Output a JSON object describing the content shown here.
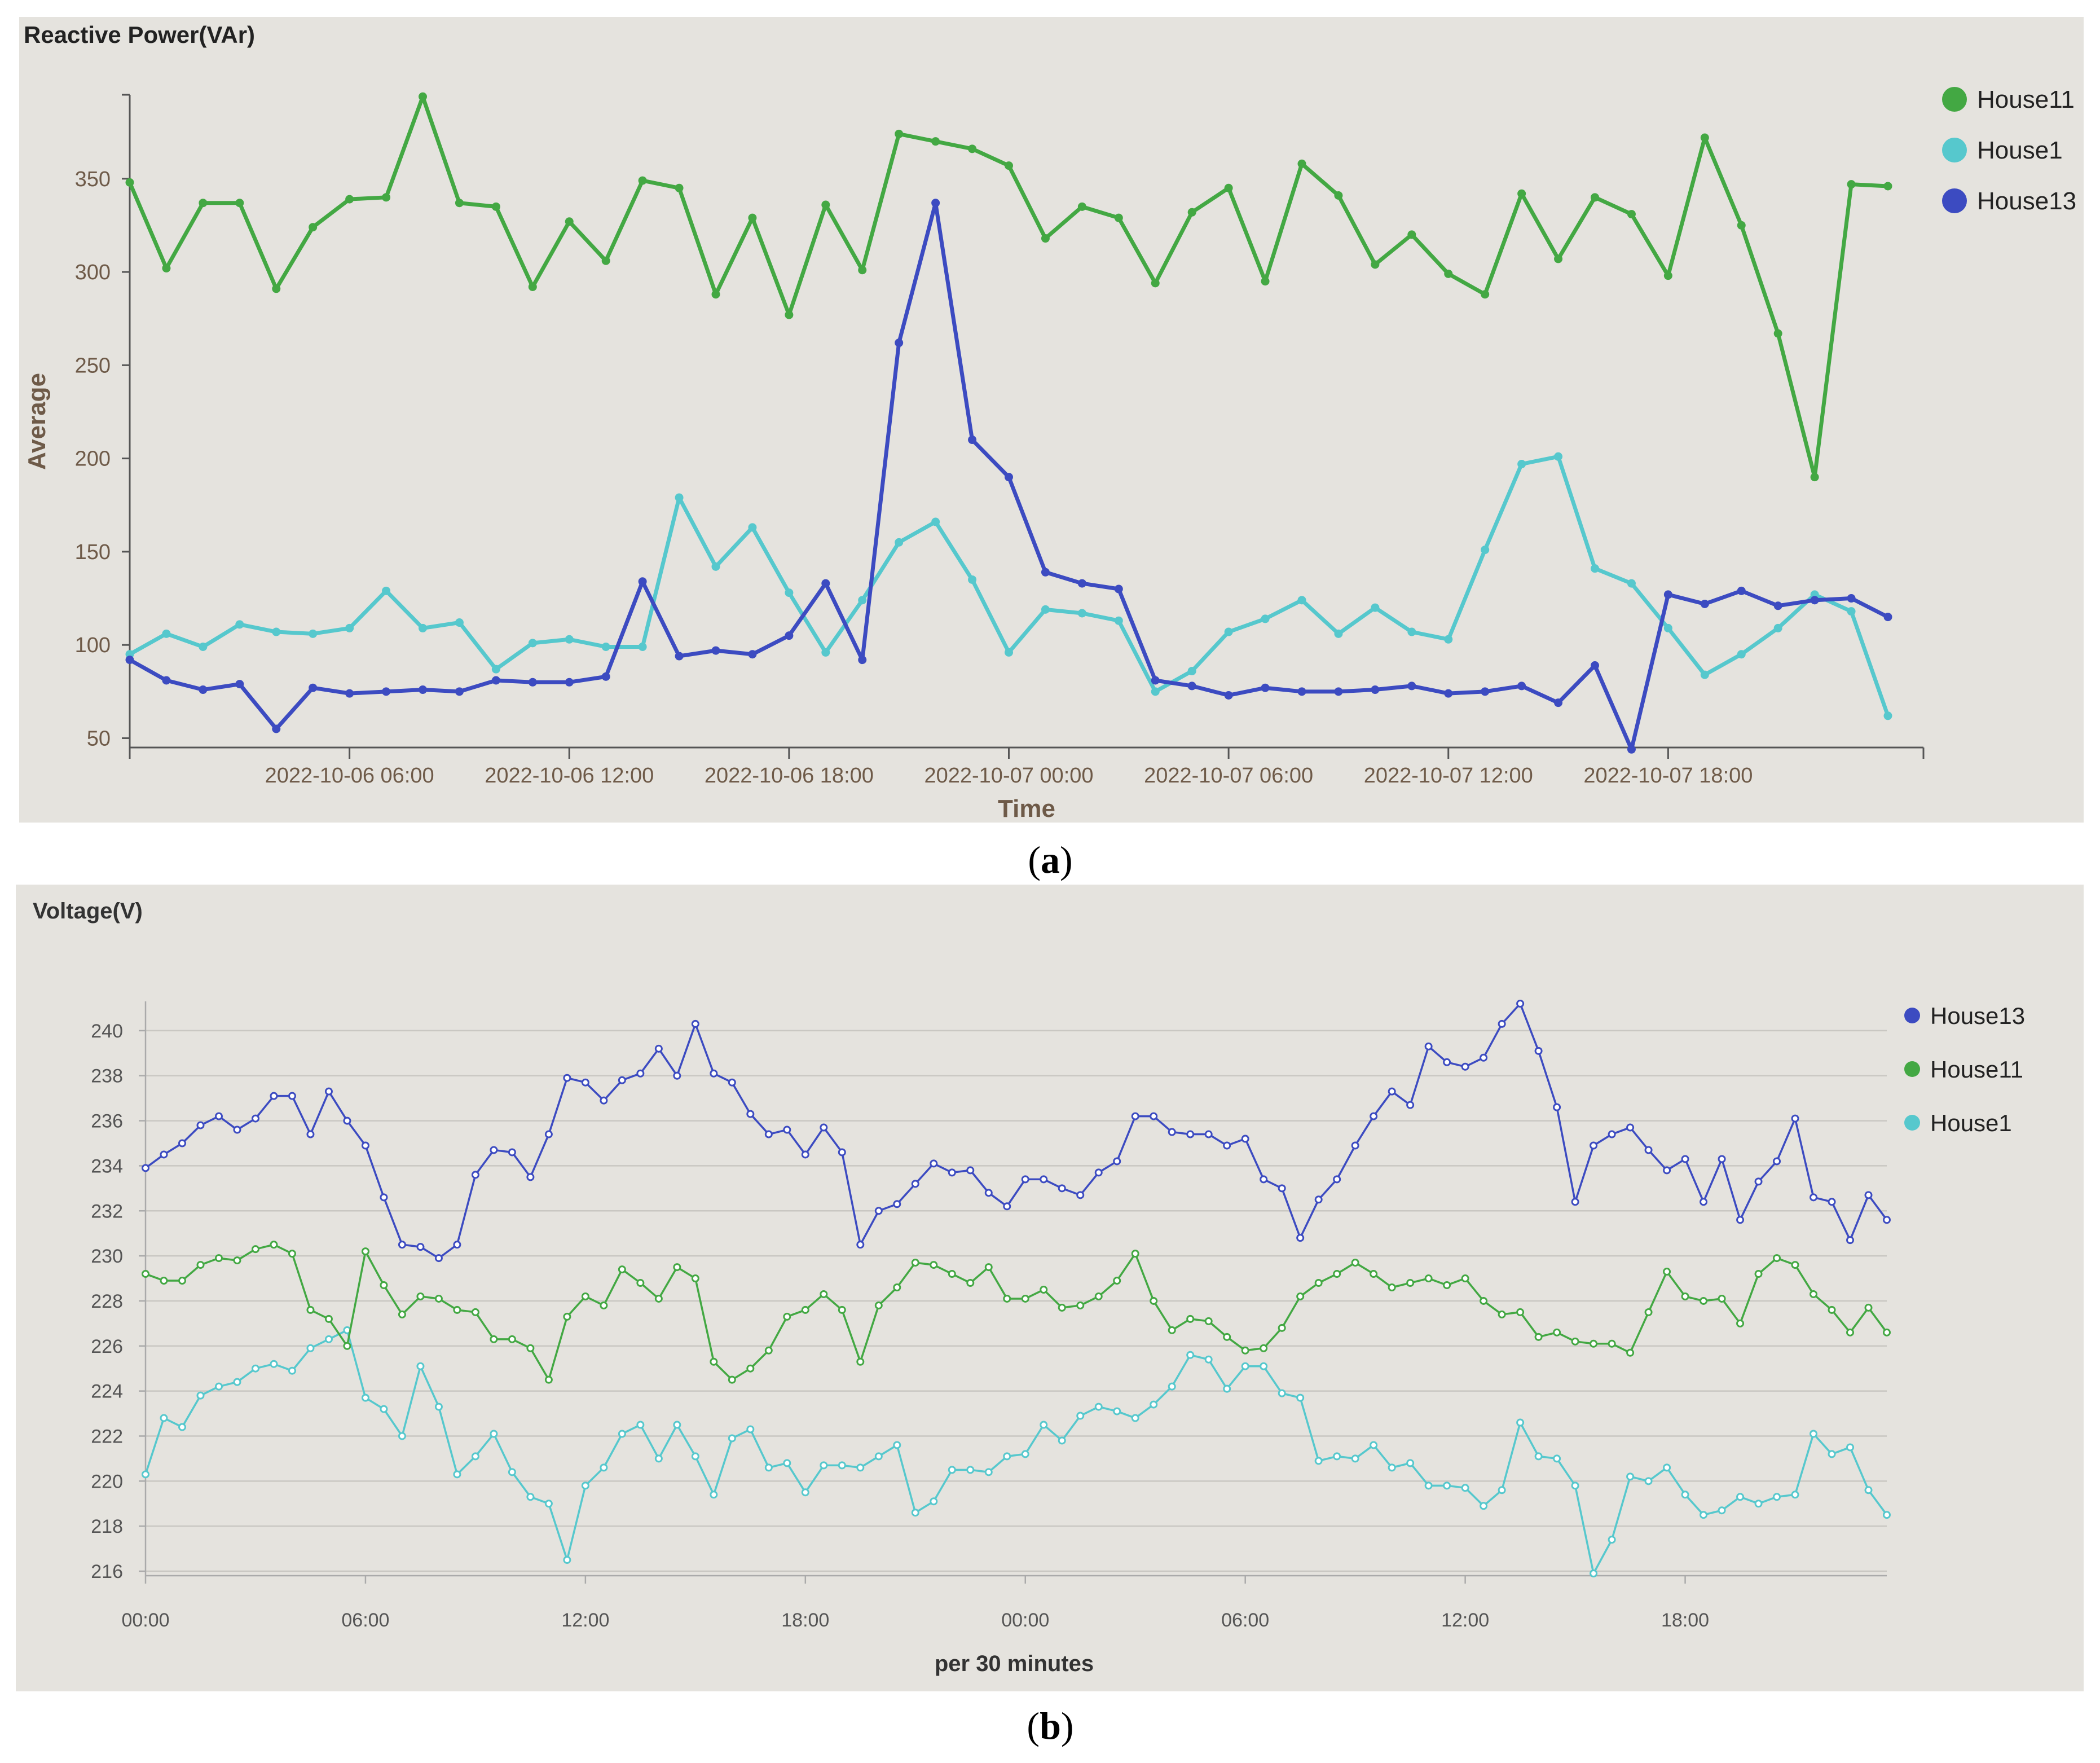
{
  "chart_data": [
    {
      "type": "line",
      "title": "Reactive Power(VAr)",
      "xlabel": "Time",
      "ylabel": "Average",
      "caption": "a",
      "ylim": [
        45,
        395
      ],
      "yticks": [
        50,
        100,
        150,
        200,
        250,
        300,
        350
      ],
      "xlim": [
        0,
        48
      ],
      "xticks": [
        {
          "x": 6,
          "label": "2022-10-06 06:00"
        },
        {
          "x": 12,
          "label": "2022-10-06 12:00"
        },
        {
          "x": 18,
          "label": "2022-10-06 18:00"
        },
        {
          "x": 24,
          "label": "2022-10-07 00:00"
        },
        {
          "x": 30,
          "label": "2022-10-07 06:00"
        },
        {
          "x": 36,
          "label": "2022-10-07 12:00"
        },
        {
          "x": 42,
          "label": "2022-10-07 18:00"
        }
      ],
      "x": [
        0,
        1,
        2,
        3,
        4,
        5,
        6,
        7,
        8,
        9,
        10,
        11,
        12,
        13,
        14,
        15,
        16,
        17,
        18,
        19,
        20,
        21,
        22,
        23,
        24,
        25,
        26,
        27,
        28,
        29,
        30,
        31,
        32,
        33,
        34,
        35,
        36,
        37,
        38,
        39,
        40,
        41,
        42,
        43,
        44,
        45,
        46,
        47,
        48
      ],
      "series": [
        {
          "name": "House11",
          "color": "#43a843",
          "values": [
            348,
            302,
            337,
            337,
            291,
            324,
            339,
            340,
            394,
            337,
            335,
            292,
            327,
            306,
            349,
            345,
            288,
            329,
            277,
            336,
            301,
            374,
            370,
            366,
            357,
            318,
            335,
            329,
            294,
            332,
            345,
            295,
            358,
            341,
            304,
            320,
            299,
            288,
            342,
            307,
            340,
            331,
            298,
            372,
            325,
            267,
            190,
            347,
            346
          ]
        },
        {
          "name": "House1",
          "color": "#56c8cd",
          "values": [
            95,
            106,
            99,
            111,
            107,
            106,
            109,
            129,
            109,
            112,
            87,
            101,
            103,
            99,
            99,
            179,
            142,
            163,
            128,
            96,
            124,
            155,
            166,
            135,
            96,
            119,
            117,
            113,
            75,
            86,
            107,
            114,
            124,
            106,
            120,
            107,
            103,
            151,
            197,
            201,
            141,
            133,
            109,
            84,
            95,
            109,
            127,
            118,
            62
          ]
        },
        {
          "name": "House13",
          "color": "#3c4bc1",
          "values": [
            92,
            81,
            76,
            79,
            55,
            77,
            74,
            75,
            76,
            75,
            81,
            80,
            80,
            83,
            134,
            94,
            97,
            95,
            105,
            133,
            92,
            262,
            337,
            210,
            190,
            139,
            133,
            130,
            81,
            78,
            73,
            77,
            75,
            75,
            76,
            78,
            74,
            75,
            78,
            69,
            89,
            44,
            127,
            122,
            129,
            121,
            124,
            125,
            115
          ]
        }
      ],
      "legend": [
        "House11",
        "House1",
        "House13"
      ]
    },
    {
      "type": "line",
      "title": "Voltage(V)",
      "xlabel": "per 30 minutes",
      "ylabel": "",
      "caption": "b",
      "ylim": [
        215.8,
        241.3
      ],
      "yticks": [
        216,
        218,
        220,
        222,
        224,
        226,
        228,
        230,
        232,
        234,
        236,
        238,
        240
      ],
      "xlim": [
        0,
        95
      ],
      "xticks": [
        {
          "x": 0,
          "label": "00:00"
        },
        {
          "x": 12,
          "label": "06:00"
        },
        {
          "x": 24,
          "label": "12:00"
        },
        {
          "x": 36,
          "label": "18:00"
        },
        {
          "x": 48,
          "label": "00:00"
        },
        {
          "x": 60,
          "label": "06:00"
        },
        {
          "x": 72,
          "label": "12:00"
        },
        {
          "x": 84,
          "label": "18:00"
        }
      ],
      "series": [
        {
          "name": "House13",
          "color": "#3c4bc1",
          "values": [
            233.9,
            234.5,
            235.0,
            235.8,
            236.2,
            235.6,
            236.1,
            237.1,
            237.1,
            235.4,
            237.3,
            236.0,
            234.9,
            232.6,
            230.5,
            230.4,
            229.9,
            230.5,
            233.6,
            234.7,
            234.6,
            233.5,
            235.4,
            237.9,
            237.7,
            236.9,
            237.8,
            238.1,
            239.2,
            238.0,
            240.3,
            238.1,
            237.7,
            236.3,
            235.4,
            235.6,
            234.5,
            235.7,
            234.6,
            230.5,
            232.0,
            232.3,
            233.2,
            234.1,
            233.7,
            233.8,
            232.8,
            232.2,
            233.4,
            233.4,
            233.0,
            232.7,
            233.7,
            234.2,
            236.2,
            236.2,
            235.5,
            235.4,
            235.4,
            234.9,
            235.2,
            233.4,
            233.0,
            230.8,
            232.5,
            233.4,
            234.9,
            236.2,
            237.3,
            236.7,
            239.3,
            238.6,
            238.4,
            238.8,
            240.3,
            241.2,
            239.1,
            236.6,
            232.4,
            234.9,
            235.4,
            235.7,
            234.7,
            233.8,
            234.3,
            232.4,
            234.3,
            231.6,
            233.3,
            234.2,
            236.1,
            232.6,
            232.4,
            230.7,
            232.7,
            231.6
          ]
        },
        {
          "name": "House11",
          "color": "#43a843",
          "values": [
            229.2,
            228.9,
            228.9,
            229.6,
            229.9,
            229.8,
            230.3,
            230.5,
            230.1,
            227.6,
            227.2,
            226.0,
            230.2,
            228.7,
            227.4,
            228.2,
            228.1,
            227.6,
            227.5,
            226.3,
            226.3,
            225.9,
            224.5,
            227.3,
            228.2,
            227.8,
            229.4,
            228.8,
            228.1,
            229.5,
            229.0,
            225.3,
            224.5,
            225.0,
            225.8,
            227.3,
            227.6,
            228.3,
            227.6,
            225.3,
            227.8,
            228.6,
            229.7,
            229.6,
            229.2,
            228.8,
            229.5,
            228.1,
            228.1,
            228.5,
            227.7,
            227.8,
            228.2,
            228.9,
            230.1,
            228.0,
            226.7,
            227.2,
            227.1,
            226.4,
            225.8,
            225.9,
            226.8,
            228.2,
            228.8,
            229.2,
            229.7,
            229.2,
            228.6,
            228.8,
            229.0,
            228.7,
            229.0,
            228.0,
            227.4,
            227.5,
            226.4,
            226.6,
            226.2,
            226.1,
            226.1,
            225.7,
            227.5,
            229.3,
            228.2,
            228.0,
            228.1,
            227.0,
            229.2,
            229.9,
            229.6,
            228.3,
            227.6,
            226.6,
            227.7,
            226.6
          ]
        },
        {
          "name": "House1",
          "color": "#56c8cd",
          "values": [
            220.3,
            222.8,
            222.4,
            223.8,
            224.2,
            224.4,
            225.0,
            225.2,
            224.9,
            225.9,
            226.3,
            226.7,
            223.7,
            223.2,
            222.0,
            225.1,
            223.3,
            220.3,
            221.1,
            222.1,
            220.4,
            219.3,
            219.0,
            216.5,
            219.8,
            220.6,
            222.1,
            222.5,
            221.0,
            222.5,
            221.1,
            219.4,
            221.9,
            222.3,
            220.6,
            220.8,
            219.5,
            220.7,
            220.7,
            220.6,
            221.1,
            221.6,
            218.6,
            219.1,
            220.5,
            220.5,
            220.4,
            221.1,
            221.2,
            222.5,
            221.8,
            222.9,
            223.3,
            223.1,
            222.8,
            223.4,
            224.2,
            225.6,
            225.4,
            224.1,
            225.1,
            225.1,
            223.9,
            223.7,
            220.9,
            221.1,
            221.0,
            221.6,
            220.6,
            220.8,
            219.8,
            219.8,
            219.7,
            218.9,
            219.6,
            222.6,
            221.1,
            221.0,
            219.8,
            215.9,
            217.4,
            220.2,
            220.0,
            220.6,
            219.4,
            218.5,
            218.7,
            219.3,
            219.0,
            219.3,
            219.4,
            222.1,
            221.2,
            221.5,
            219.6,
            218.5
          ]
        }
      ],
      "legend": [
        "House13",
        "House11",
        "House1"
      ]
    }
  ]
}
